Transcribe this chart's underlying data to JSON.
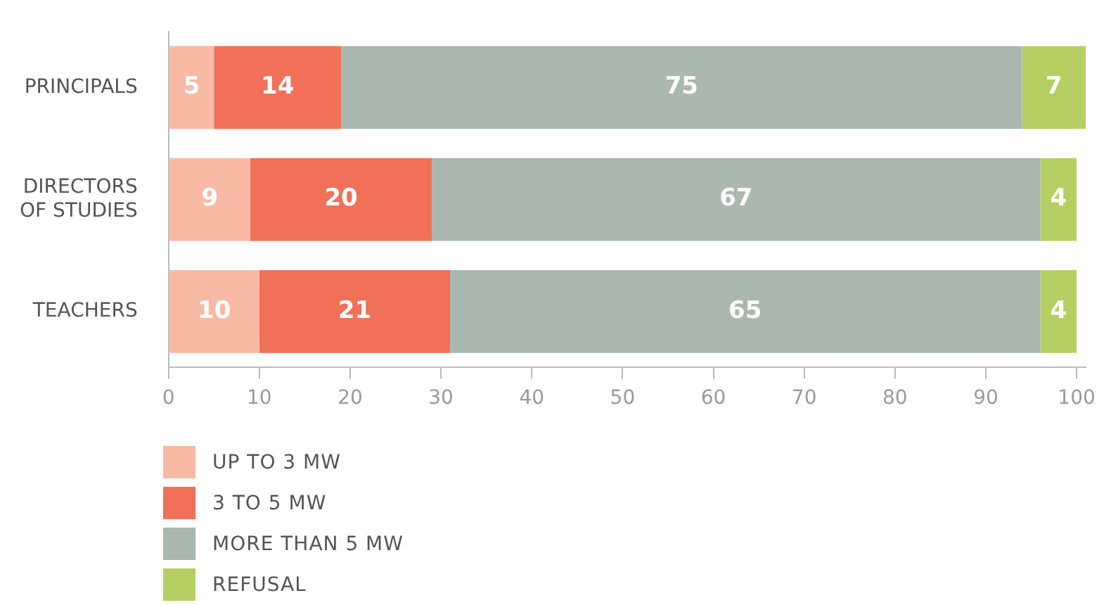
{
  "chart_data": {
    "type": "bar",
    "orientation": "horizontal",
    "stacked": true,
    "categories": [
      "PRINCIPALS",
      "DIRECTORS OF STUDIES",
      "TEACHERS"
    ],
    "series": [
      {
        "name": "UP TO 3 MW",
        "color": "#f8b9a5",
        "values": [
          5,
          9,
          10
        ]
      },
      {
        "name": "3 TO 5 MW",
        "color": "#f07058",
        "values": [
          14,
          20,
          21
        ]
      },
      {
        "name": "MORE THAN 5 MW",
        "color": "#a9b8b0",
        "values": [
          75,
          67,
          65
        ]
      },
      {
        "name": "REFUSAL",
        "color": "#b5cf62",
        "values": [
          7,
          4,
          4
        ]
      }
    ],
    "xlim": [
      0,
      101
    ],
    "xticks": [
      0,
      10,
      20,
      30,
      40,
      50,
      60,
      70,
      80,
      90,
      100
    ],
    "data_labels": true,
    "grid": false,
    "legend": "bottom left"
  }
}
